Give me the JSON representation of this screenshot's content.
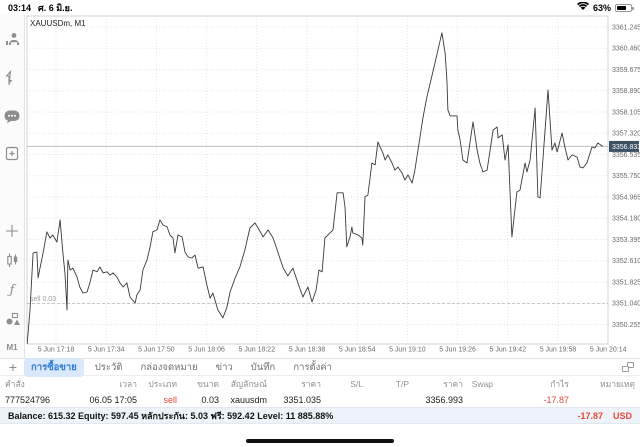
{
  "status_bar": {
    "time": "03:14",
    "date": "ศ. 6 มิ.ย.",
    "battery_percent": "63%"
  },
  "sidebar": {
    "icons": [
      "account-icon",
      "trade-arrows-icon",
      "chat-icon",
      "new-order-icon",
      "crosshair-icon",
      "candlestick-icon",
      "indicators-icon",
      "objects-icon"
    ],
    "indicators_glyph": "ƒ",
    "timeframe_label": "M1"
  },
  "chart_data": {
    "type": "line",
    "symbol_label": "XAUUSDm, M1",
    "title": "XAUUSDm M1 line chart",
    "y_ticks": [
      3361.245,
      3360.46,
      3359.675,
      3358.89,
      3358.105,
      3357.32,
      3356.535,
      3355.75,
      3354.965,
      3354.18,
      3353.395,
      3352.61,
      3351.825,
      3351.04,
      3350.255
    ],
    "x_ticks": [
      "5 Jun 17:18",
      "5 Jun 17:34",
      "5 Jun 17:50",
      "5 Jun 18:06",
      "5 Jun 18:22",
      "5 Jun 18:38",
      "5 Jun 18:54",
      "5 Jun 19:10",
      "5 Jun 19:26",
      "5 Jun 19:42",
      "5 Jun 19:58",
      "5 Jun 20:14"
    ],
    "x_tick_interval_minutes": 16,
    "ylim": [
      3349.5,
      3361.4
    ],
    "grid": "dotted",
    "current_price": 3356.833,
    "position_line": {
      "label": "sell 0.03",
      "price": 3351.035
    },
    "series": [
      {
        "name": "XAUUSDm close",
        "points": [
          [
            -9.2,
            3349.5
          ],
          [
            -8.3,
            3350.79
          ],
          [
            -7.3,
            3352.9
          ],
          [
            -6.1,
            3352.93
          ],
          [
            -5.7,
            3351.98
          ],
          [
            -5.1,
            3352.34
          ],
          [
            -4.1,
            3352.9
          ],
          [
            -2.9,
            3353.68
          ],
          [
            -1.9,
            3353.45
          ],
          [
            -1,
            3353.56
          ],
          [
            0.3,
            3353.3
          ],
          [
            1.3,
            3354.12
          ],
          [
            2.2,
            3352.9
          ],
          [
            2.9,
            3352.08
          ],
          [
            3.5,
            3350.79
          ],
          [
            3.8,
            3352.64
          ],
          [
            4.5,
            3352.27
          ],
          [
            5.4,
            3352.34
          ],
          [
            6.7,
            3352.01
          ],
          [
            7.6,
            3351.64
          ],
          [
            8.6,
            3351.42
          ],
          [
            9.9,
            3351.46
          ],
          [
            10.8,
            3351.79
          ],
          [
            11.8,
            3352.27
          ],
          [
            13.1,
            3352.2
          ],
          [
            14,
            3352.38
          ],
          [
            15,
            3352.16
          ],
          [
            16.3,
            3352.2
          ],
          [
            17.2,
            3352.08
          ],
          [
            18.2,
            3352.16
          ],
          [
            19.4,
            3352.01
          ],
          [
            20.4,
            3351.79
          ],
          [
            21.4,
            3351.64
          ],
          [
            22.6,
            3351.79
          ],
          [
            23.6,
            3351.27
          ],
          [
            25.2,
            3351.05
          ],
          [
            25.8,
            3351.35
          ],
          [
            26.8,
            3351.53
          ],
          [
            27.7,
            3352.27
          ],
          [
            29,
            3352.64
          ],
          [
            30,
            3353.12
          ],
          [
            30.9,
            3353.68
          ],
          [
            32.2,
            3353.75
          ],
          [
            33.1,
            3354.12
          ],
          [
            34.1,
            3353.93
          ],
          [
            35.4,
            3353.86
          ],
          [
            36.3,
            3353.56
          ],
          [
            37.3,
            3353.45
          ],
          [
            37.9,
            3352.9
          ],
          [
            38.9,
            3353.56
          ],
          [
            40.2,
            3353.49
          ],
          [
            41.1,
            3352.93
          ],
          [
            42.1,
            3352.75
          ],
          [
            43.3,
            3352.71
          ],
          [
            44.3,
            3352.82
          ],
          [
            45.3,
            3352.34
          ],
          [
            46.9,
            3352.38
          ],
          [
            48.1,
            3351.71
          ],
          [
            49.1,
            3351.23
          ],
          [
            50,
            3351.42
          ],
          [
            51.6,
            3350.79
          ],
          [
            53.2,
            3350.5
          ],
          [
            54.5,
            3350.9
          ],
          [
            55.5,
            3351.46
          ],
          [
            57.1,
            3351.98
          ],
          [
            58.6,
            3352.38
          ],
          [
            60.2,
            3353.01
          ],
          [
            61.8,
            3353.82
          ],
          [
            63.4,
            3354.01
          ],
          [
            64.4,
            3353.82
          ],
          [
            66,
            3353.49
          ],
          [
            67.6,
            3353.75
          ],
          [
            69.2,
            3353.45
          ],
          [
            70.8,
            3352.9
          ],
          [
            72.4,
            3352.34
          ],
          [
            73.9,
            3352.05
          ],
          [
            75.5,
            3352.34
          ],
          [
            77.1,
            3351.79
          ],
          [
            78.7,
            3351.27
          ],
          [
            80.3,
            3351.64
          ],
          [
            81.6,
            3351.09
          ],
          [
            82.9,
            3351.53
          ],
          [
            83.8,
            3352.27
          ],
          [
            84.8,
            3352.2
          ],
          [
            85.7,
            3353.45
          ],
          [
            87.3,
            3353.64
          ],
          [
            88.3,
            3353.75
          ],
          [
            89.6,
            3355.12
          ],
          [
            91.5,
            3355.12
          ],
          [
            92.1,
            3354.6
          ],
          [
            92.7,
            3353.12
          ],
          [
            93.7,
            3353.49
          ],
          [
            94.3,
            3353.86
          ],
          [
            94.6,
            3353.64
          ],
          [
            96.3,
            3353.56
          ],
          [
            97.5,
            3353.45
          ],
          [
            97.8,
            3353.19
          ],
          [
            98.5,
            3354.97
          ],
          [
            99.4,
            3355.04
          ],
          [
            100.7,
            3356.22
          ],
          [
            101.7,
            3356.15
          ],
          [
            102.6,
            3357
          ],
          [
            103.3,
            3356.81
          ],
          [
            104.2,
            3356.59
          ],
          [
            104.9,
            3356.33
          ],
          [
            105.8,
            3356.52
          ],
          [
            107.1,
            3356.22
          ],
          [
            108,
            3355.96
          ],
          [
            109,
            3356.07
          ],
          [
            110.3,
            3355.85
          ],
          [
            111.2,
            3355.59
          ],
          [
            112.2,
            3355.78
          ],
          [
            113.5,
            3355.48
          ],
          [
            114.4,
            3355.96
          ],
          [
            117,
            3357.92
          ],
          [
            118.2,
            3358.66
          ],
          [
            120.8,
            3359.92
          ],
          [
            123,
            3361.03
          ],
          [
            124,
            3360.29
          ],
          [
            124.6,
            3359.29
          ],
          [
            124.9,
            3358.18
          ],
          [
            125.6,
            3357.96
          ],
          [
            127.8,
            3357.96
          ],
          [
            128.1,
            3357.44
          ],
          [
            128.8,
            3357.07
          ],
          [
            129.7,
            3356.33
          ],
          [
            131,
            3356.22
          ],
          [
            132.9,
            3357.74
          ],
          [
            134.2,
            3356.7
          ],
          [
            135.1,
            3356.22
          ],
          [
            136.1,
            3355.89
          ],
          [
            137.4,
            3355.96
          ],
          [
            139.3,
            3357.44
          ],
          [
            140.6,
            3357.55
          ],
          [
            140.9,
            3357.15
          ],
          [
            142.2,
            3357.26
          ],
          [
            143.1,
            3356.33
          ],
          [
            144.1,
            3356.89
          ],
          [
            145.3,
            3353.49
          ],
          [
            146.9,
            3355.15
          ],
          [
            147.9,
            3355.22
          ],
          [
            149.5,
            3356.22
          ],
          [
            150.1,
            3355.89
          ],
          [
            151.1,
            3356.33
          ],
          [
            152.7,
            3358.25
          ],
          [
            153.6,
            3354.97
          ],
          [
            154.3,
            3354.93
          ],
          [
            156.8,
            3358.92
          ],
          [
            158.1,
            3356.7
          ],
          [
            159,
            3356.96
          ],
          [
            159.7,
            3356.63
          ],
          [
            161.3,
            3357.33
          ],
          [
            162.2,
            3356.81
          ],
          [
            163.2,
            3356.33
          ],
          [
            164.5,
            3356.52
          ],
          [
            166.1,
            3356.44
          ],
          [
            167,
            3356.07
          ],
          [
            168,
            3356.04
          ],
          [
            169.2,
            3356.22
          ],
          [
            170.8,
            3356.81
          ],
          [
            171.8,
            3356.78
          ],
          [
            172.7,
            3356.96
          ],
          [
            174.3,
            3356.83
          ]
        ]
      }
    ]
  },
  "tabs": {
    "add_label": "+",
    "items": [
      {
        "label": "การซื้อขาย",
        "selected": true
      },
      {
        "label": "ประวัติ",
        "selected": false
      },
      {
        "label": "กล่องจดหมาย",
        "selected": false
      },
      {
        "label": "ข่าว",
        "selected": false
      },
      {
        "label": "บันทึก",
        "selected": false
      },
      {
        "label": "การตั้งค่า",
        "selected": false
      }
    ]
  },
  "trade_table": {
    "headers": [
      "คำสั่ง",
      "เวลา",
      "ประเภท",
      "ขนาด",
      "สัญลักษณ์",
      "ราคา",
      "S/L",
      "T/P",
      "ราคา",
      "Swap",
      "กำไร",
      "หมายเหตุ"
    ],
    "row": {
      "order": "777524796",
      "time": "06.05 17:05",
      "type": "sell",
      "volume": "0.03",
      "symbol": "xauusdm",
      "open_price": "3351.035",
      "sl": "",
      "tp": "",
      "current_price": "3356.993",
      "swap": "",
      "profit": "-17.87",
      "comment": ""
    }
  },
  "account": {
    "summary": "Balance: 615.32 Equity: 597.45 หลักประกัน: 5.03 ฟรี: 592.42 Level: 11 885.88%",
    "profit": "-17.87",
    "currency": "USD"
  },
  "colors": {
    "loss_red": "#e8453c",
    "tab_blue": "#2e7cd6",
    "tab_pill": "#d9e8fb",
    "price_badge": "#3d5166",
    "grid": "#dcdcdc",
    "line": "#3a3a3a"
  }
}
